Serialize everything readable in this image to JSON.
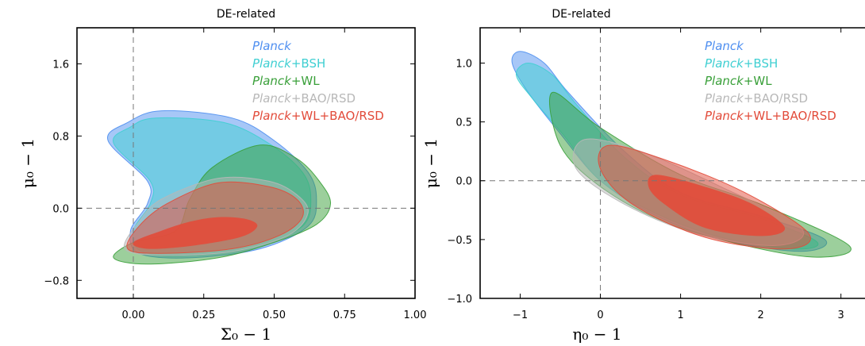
{
  "chart_data": [
    {
      "type": "area",
      "title": "DE-related",
      "xlabel": "Σ_0 − 1",
      "ylabel": "μ_0 − 1",
      "xlim": [
        -0.2,
        1.0
      ],
      "ylim": [
        -1.0,
        2.0
      ],
      "xticks": [
        "0.00",
        "0.25",
        "0.50",
        "0.75",
        "1.00"
      ],
      "xtick_values": [
        0,
        0.25,
        0.5,
        0.75,
        1.0
      ],
      "yticks": [
        "−0.8",
        "0.0",
        "0.8",
        "1.6"
      ],
      "ytick_values": [
        -0.8,
        0,
        0.8,
        1.6
      ],
      "reference_lines": {
        "x": 0,
        "y": 0,
        "style": "dashed"
      },
      "legend_placement": "top-right",
      "series": [
        {
          "name": "Planck",
          "name_italic": "Planck",
          "name_rest": "",
          "color": "#4f8ff0",
          "contour_95": [
            [
              0.1,
              1.08
            ],
            [
              0.35,
              1.0
            ],
            [
              0.5,
              0.75
            ],
            [
              0.62,
              0.4
            ],
            [
              0.65,
              0.1
            ],
            [
              0.62,
              -0.2
            ],
            [
              0.45,
              -0.45
            ],
            [
              0.2,
              -0.55
            ],
            [
              0.02,
              -0.5
            ],
            [
              -0.01,
              -0.25
            ],
            [
              0.05,
              0.05
            ],
            [
              0.05,
              0.3
            ],
            [
              -0.09,
              0.75
            ],
            [
              -0.02,
              0.95
            ]
          ]
        },
        {
          "name": "Planck+BSH",
          "name_italic": "Planck",
          "name_rest": "+BSH",
          "color": "#3fcfd2",
          "contour_95": [
            [
              0.08,
              1.0
            ],
            [
              0.32,
              0.95
            ],
            [
              0.48,
              0.72
            ],
            [
              0.6,
              0.4
            ],
            [
              0.63,
              0.1
            ],
            [
              0.6,
              -0.2
            ],
            [
              0.44,
              -0.42
            ],
            [
              0.2,
              -0.52
            ],
            [
              0.03,
              -0.48
            ],
            [
              0.0,
              -0.25
            ],
            [
              0.06,
              0.05
            ],
            [
              0.06,
              0.3
            ],
            [
              -0.07,
              0.72
            ],
            [
              -0.01,
              0.9
            ]
          ]
        },
        {
          "name": "Planck+WL",
          "name_italic": "Planck",
          "name_rest": "+WL",
          "color": "#3aa03a",
          "contour_95": [
            [
              0.45,
              0.7
            ],
            [
              0.58,
              0.55
            ],
            [
              0.66,
              0.3
            ],
            [
              0.7,
              0.05
            ],
            [
              0.65,
              -0.18
            ],
            [
              0.5,
              -0.38
            ],
            [
              0.3,
              -0.55
            ],
            [
              0.05,
              -0.62
            ],
            [
              -0.07,
              -0.55
            ],
            [
              0.0,
              -0.38
            ],
            [
              0.15,
              -0.25
            ],
            [
              0.2,
              0.1
            ],
            [
              0.28,
              0.45
            ]
          ]
        },
        {
          "name": "Planck+BAO/RSD",
          "name_italic": "Planck",
          "name_rest": "+BAO/RSD",
          "color": "#b8b8b8",
          "contour_95": [
            [
              0.3,
              0.33
            ],
            [
              0.48,
              0.3
            ],
            [
              0.58,
              0.15
            ],
            [
              0.62,
              -0.05
            ],
            [
              0.55,
              -0.3
            ],
            [
              0.35,
              -0.48
            ],
            [
              0.1,
              -0.52
            ],
            [
              -0.03,
              -0.45
            ],
            [
              0.02,
              -0.15
            ],
            [
              0.1,
              0.1
            ]
          ]
        },
        {
          "name": "Planck+WL+BAO/RSD",
          "name_italic": "Planck",
          "name_rest": "+WL+BAO/RSD",
          "color": "#e24b3a",
          "contour_95": [
            [
              0.3,
              0.28
            ],
            [
              0.48,
              0.24
            ],
            [
              0.58,
              0.1
            ],
            [
              0.6,
              -0.1
            ],
            [
              0.52,
              -0.3
            ],
            [
              0.35,
              -0.45
            ],
            [
              0.1,
              -0.5
            ],
            [
              -0.02,
              -0.45
            ],
            [
              0.02,
              -0.2
            ],
            [
              0.12,
              0.05
            ]
          ],
          "contour_68": [
            [
              0.3,
              -0.1
            ],
            [
              0.4,
              -0.12
            ],
            [
              0.44,
              -0.2
            ],
            [
              0.38,
              -0.32
            ],
            [
              0.2,
              -0.42
            ],
            [
              0.05,
              -0.45
            ],
            [
              0.0,
              -0.38
            ],
            [
              0.1,
              -0.25
            ],
            [
              0.2,
              -0.15
            ]
          ]
        }
      ]
    },
    {
      "type": "area",
      "title": "DE-related",
      "xlabel": "η_0 − 1",
      "ylabel": "μ_0 − 1",
      "xlim": [
        -1.5,
        3.3
      ],
      "ylim": [
        -1.0,
        1.3
      ],
      "xticks": [
        "−1",
        "0",
        "1",
        "2",
        "3"
      ],
      "xtick_values": [
        -1,
        0,
        1,
        2,
        3
      ],
      "yticks": [
        "−1.0",
        "−0.5",
        "0.0",
        "0.5",
        "1.0"
      ],
      "ytick_values": [
        -1.0,
        -0.5,
        0,
        0.5,
        1.0
      ],
      "reference_lines": {
        "x": 0,
        "y": 0,
        "style": "dashed"
      },
      "legend_placement": "top-right",
      "series": [
        {
          "name": "Planck",
          "name_italic": "Planck",
          "name_rest": "",
          "color": "#4f8ff0",
          "contour_95": [
            [
              -1.0,
              1.1
            ],
            [
              -0.7,
              1.0
            ],
            [
              -0.4,
              0.75
            ],
            [
              0.3,
              0.25
            ],
            [
              1.0,
              -0.1
            ],
            [
              2.0,
              -0.3
            ],
            [
              2.8,
              -0.5
            ],
            [
              2.5,
              -0.6
            ],
            [
              1.5,
              -0.5
            ],
            [
              0.7,
              -0.3
            ],
            [
              0.0,
              0.0
            ],
            [
              -0.5,
              0.4
            ],
            [
              -0.9,
              0.75
            ],
            [
              -1.1,
              1.0
            ]
          ]
        },
        {
          "name": "Planck+BSH",
          "name_italic": "Planck",
          "name_rest": "+BSH",
          "color": "#3fcfd2",
          "contour_95": [
            [
              -0.9,
              1.0
            ],
            [
              -0.6,
              0.9
            ],
            [
              -0.3,
              0.65
            ],
            [
              0.3,
              0.2
            ],
            [
              1.0,
              -0.12
            ],
            [
              2.0,
              -0.32
            ],
            [
              2.7,
              -0.52
            ],
            [
              2.4,
              -0.58
            ],
            [
              1.5,
              -0.48
            ],
            [
              0.7,
              -0.28
            ],
            [
              0.0,
              0.0
            ],
            [
              -0.45,
              0.38
            ],
            [
              -0.85,
              0.7
            ],
            [
              -1.05,
              0.9
            ]
          ]
        },
        {
          "name": "Planck+WL",
          "name_italic": "Planck",
          "name_rest": "+WL",
          "color": "#3aa03a",
          "contour_95": [
            [
              -0.6,
              0.75
            ],
            [
              0.0,
              0.45
            ],
            [
              1.0,
              0.05
            ],
            [
              2.0,
              -0.2
            ],
            [
              3.1,
              -0.55
            ],
            [
              2.7,
              -0.65
            ],
            [
              1.8,
              -0.55
            ],
            [
              0.8,
              -0.35
            ],
            [
              0.0,
              -0.05
            ],
            [
              -0.5,
              0.3
            ]
          ]
        },
        {
          "name": "Planck+BAO/RSD",
          "name_italic": "Planck",
          "name_rest": "+BAO/RSD",
          "color": "#b8b8b8",
          "contour_95": [
            [
              -0.2,
              0.35
            ],
            [
              0.5,
              0.25
            ],
            [
              1.5,
              -0.05
            ],
            [
              2.5,
              -0.4
            ],
            [
              2.2,
              -0.55
            ],
            [
              1.2,
              -0.45
            ],
            [
              0.3,
              -0.2
            ],
            [
              -0.3,
              0.1
            ]
          ]
        },
        {
          "name": "Planck+WL+BAO/RSD",
          "name_italic": "Planck",
          "name_rest": "+WL+BAO/RSD",
          "color": "#e24b3a",
          "contour_95": [
            [
              0.1,
              0.3
            ],
            [
              0.8,
              0.18
            ],
            [
              1.8,
              -0.1
            ],
            [
              2.6,
              -0.45
            ],
            [
              2.3,
              -0.58
            ],
            [
              1.3,
              -0.48
            ],
            [
              0.4,
              -0.2
            ],
            [
              0.0,
              0.1
            ]
          ],
          "contour_68": [
            [
              0.7,
              0.05
            ],
            [
              1.3,
              -0.05
            ],
            [
              1.9,
              -0.2
            ],
            [
              2.3,
              -0.4
            ],
            [
              2.0,
              -0.47
            ],
            [
              1.3,
              -0.4
            ],
            [
              0.8,
              -0.2
            ],
            [
              0.6,
              -0.05
            ]
          ]
        }
      ]
    }
  ]
}
